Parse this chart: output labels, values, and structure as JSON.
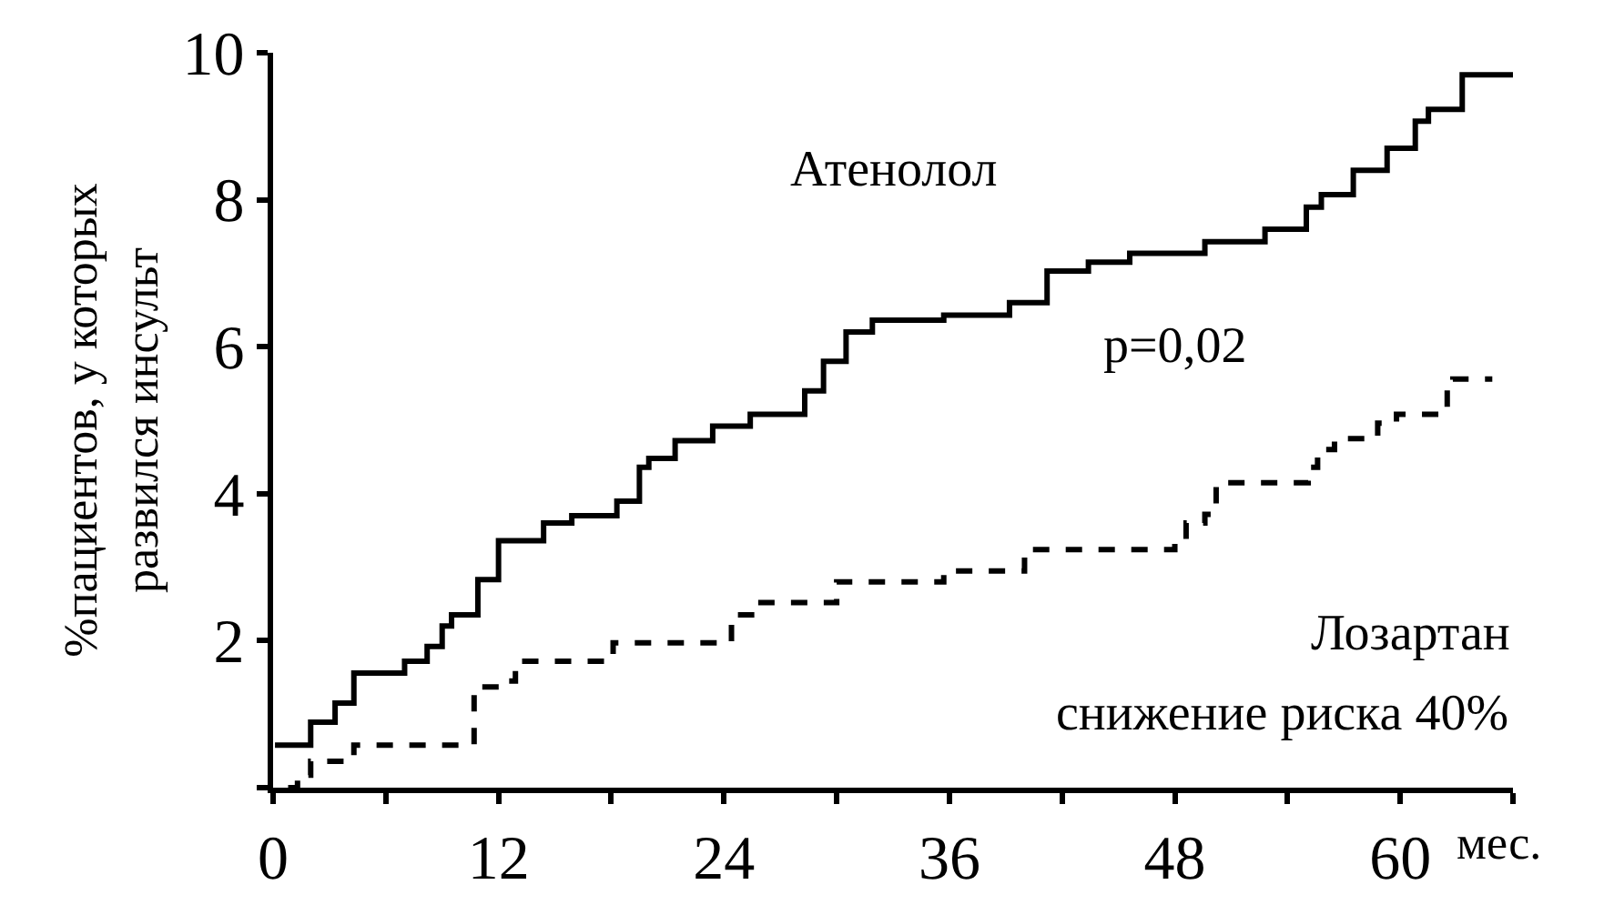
{
  "chart_data": {
    "type": "step",
    "xlabel": "мес.",
    "ylabel": "%пациентов, у которых\nразвился инсульт",
    "xlim": [
      0,
      66
    ],
    "ylim": [
      0,
      10
    ],
    "xticks": [
      0,
      {
        "value": 6,
        "label": null
      },
      12,
      {
        "value": 18,
        "label": null
      },
      24,
      {
        "value": 30,
        "label": null
      },
      36,
      {
        "value": 42,
        "label": null
      },
      48,
      {
        "value": 54,
        "label": null
      },
      60,
      {
        "value": 66,
        "label": null
      }
    ],
    "yticks": [
      {
        "value": 0,
        "label": null
      },
      2,
      4,
      6,
      8,
      10
    ],
    "legend": false,
    "marker": "none",
    "series": [
      {
        "name": "Атенолол",
        "color": "#000000",
        "line_style": "solid",
        "x": [
          0.1,
          2,
          3.3,
          4.3,
          7,
          8.2,
          9,
          9.5,
          10.9,
          12,
          14.4,
          15.9,
          18.3,
          19.5,
          20,
          21.4,
          23.4,
          25.4,
          28.3,
          29.3,
          30.5,
          31.9,
          35.7,
          39.2,
          41.2,
          43.4,
          45.6,
          49.6,
          52.8,
          55,
          55.8,
          57.5,
          59.3,
          60.8,
          61.5,
          63.3,
          66
        ],
        "values": [
          0.58,
          0.89,
          1.15,
          1.56,
          1.72,
          1.92,
          2.2,
          2.35,
          2.83,
          3.36,
          3.6,
          3.7,
          3.9,
          4.36,
          4.48,
          4.72,
          4.92,
          5.08,
          5.4,
          5.8,
          6.2,
          6.36,
          6.43,
          6.6,
          7.03,
          7.15,
          7.27,
          7.43,
          7.6,
          7.9,
          8.07,
          8.4,
          8.7,
          9.07,
          9.23,
          9.7,
          9.7
        ]
      },
      {
        "name": "Лозартан",
        "color": "#000000",
        "line_style": "dashed",
        "x": [
          0.8,
          1.3,
          2,
          4.3,
          10.7,
          12.2,
          12.9,
          18.1,
          24.4,
          25.8,
          30,
          35.7,
          40,
          48,
          48.6,
          49.6,
          50.2,
          55.1,
          55.6,
          56.5,
          58.8,
          59.8,
          62.5,
          62.8,
          64.9
        ],
        "values": [
          0,
          0.17,
          0.36,
          0.58,
          1.37,
          1.45,
          1.72,
          1.97,
          2.35,
          2.52,
          2.8,
          2.95,
          3.24,
          3.36,
          3.6,
          3.72,
          4.15,
          4.36,
          4.6,
          4.75,
          4.96,
          5.08,
          5.47,
          5.56,
          5.56
        ]
      }
    ],
    "annotations": [
      "p=0,02",
      "снижение риска 40%"
    ]
  }
}
